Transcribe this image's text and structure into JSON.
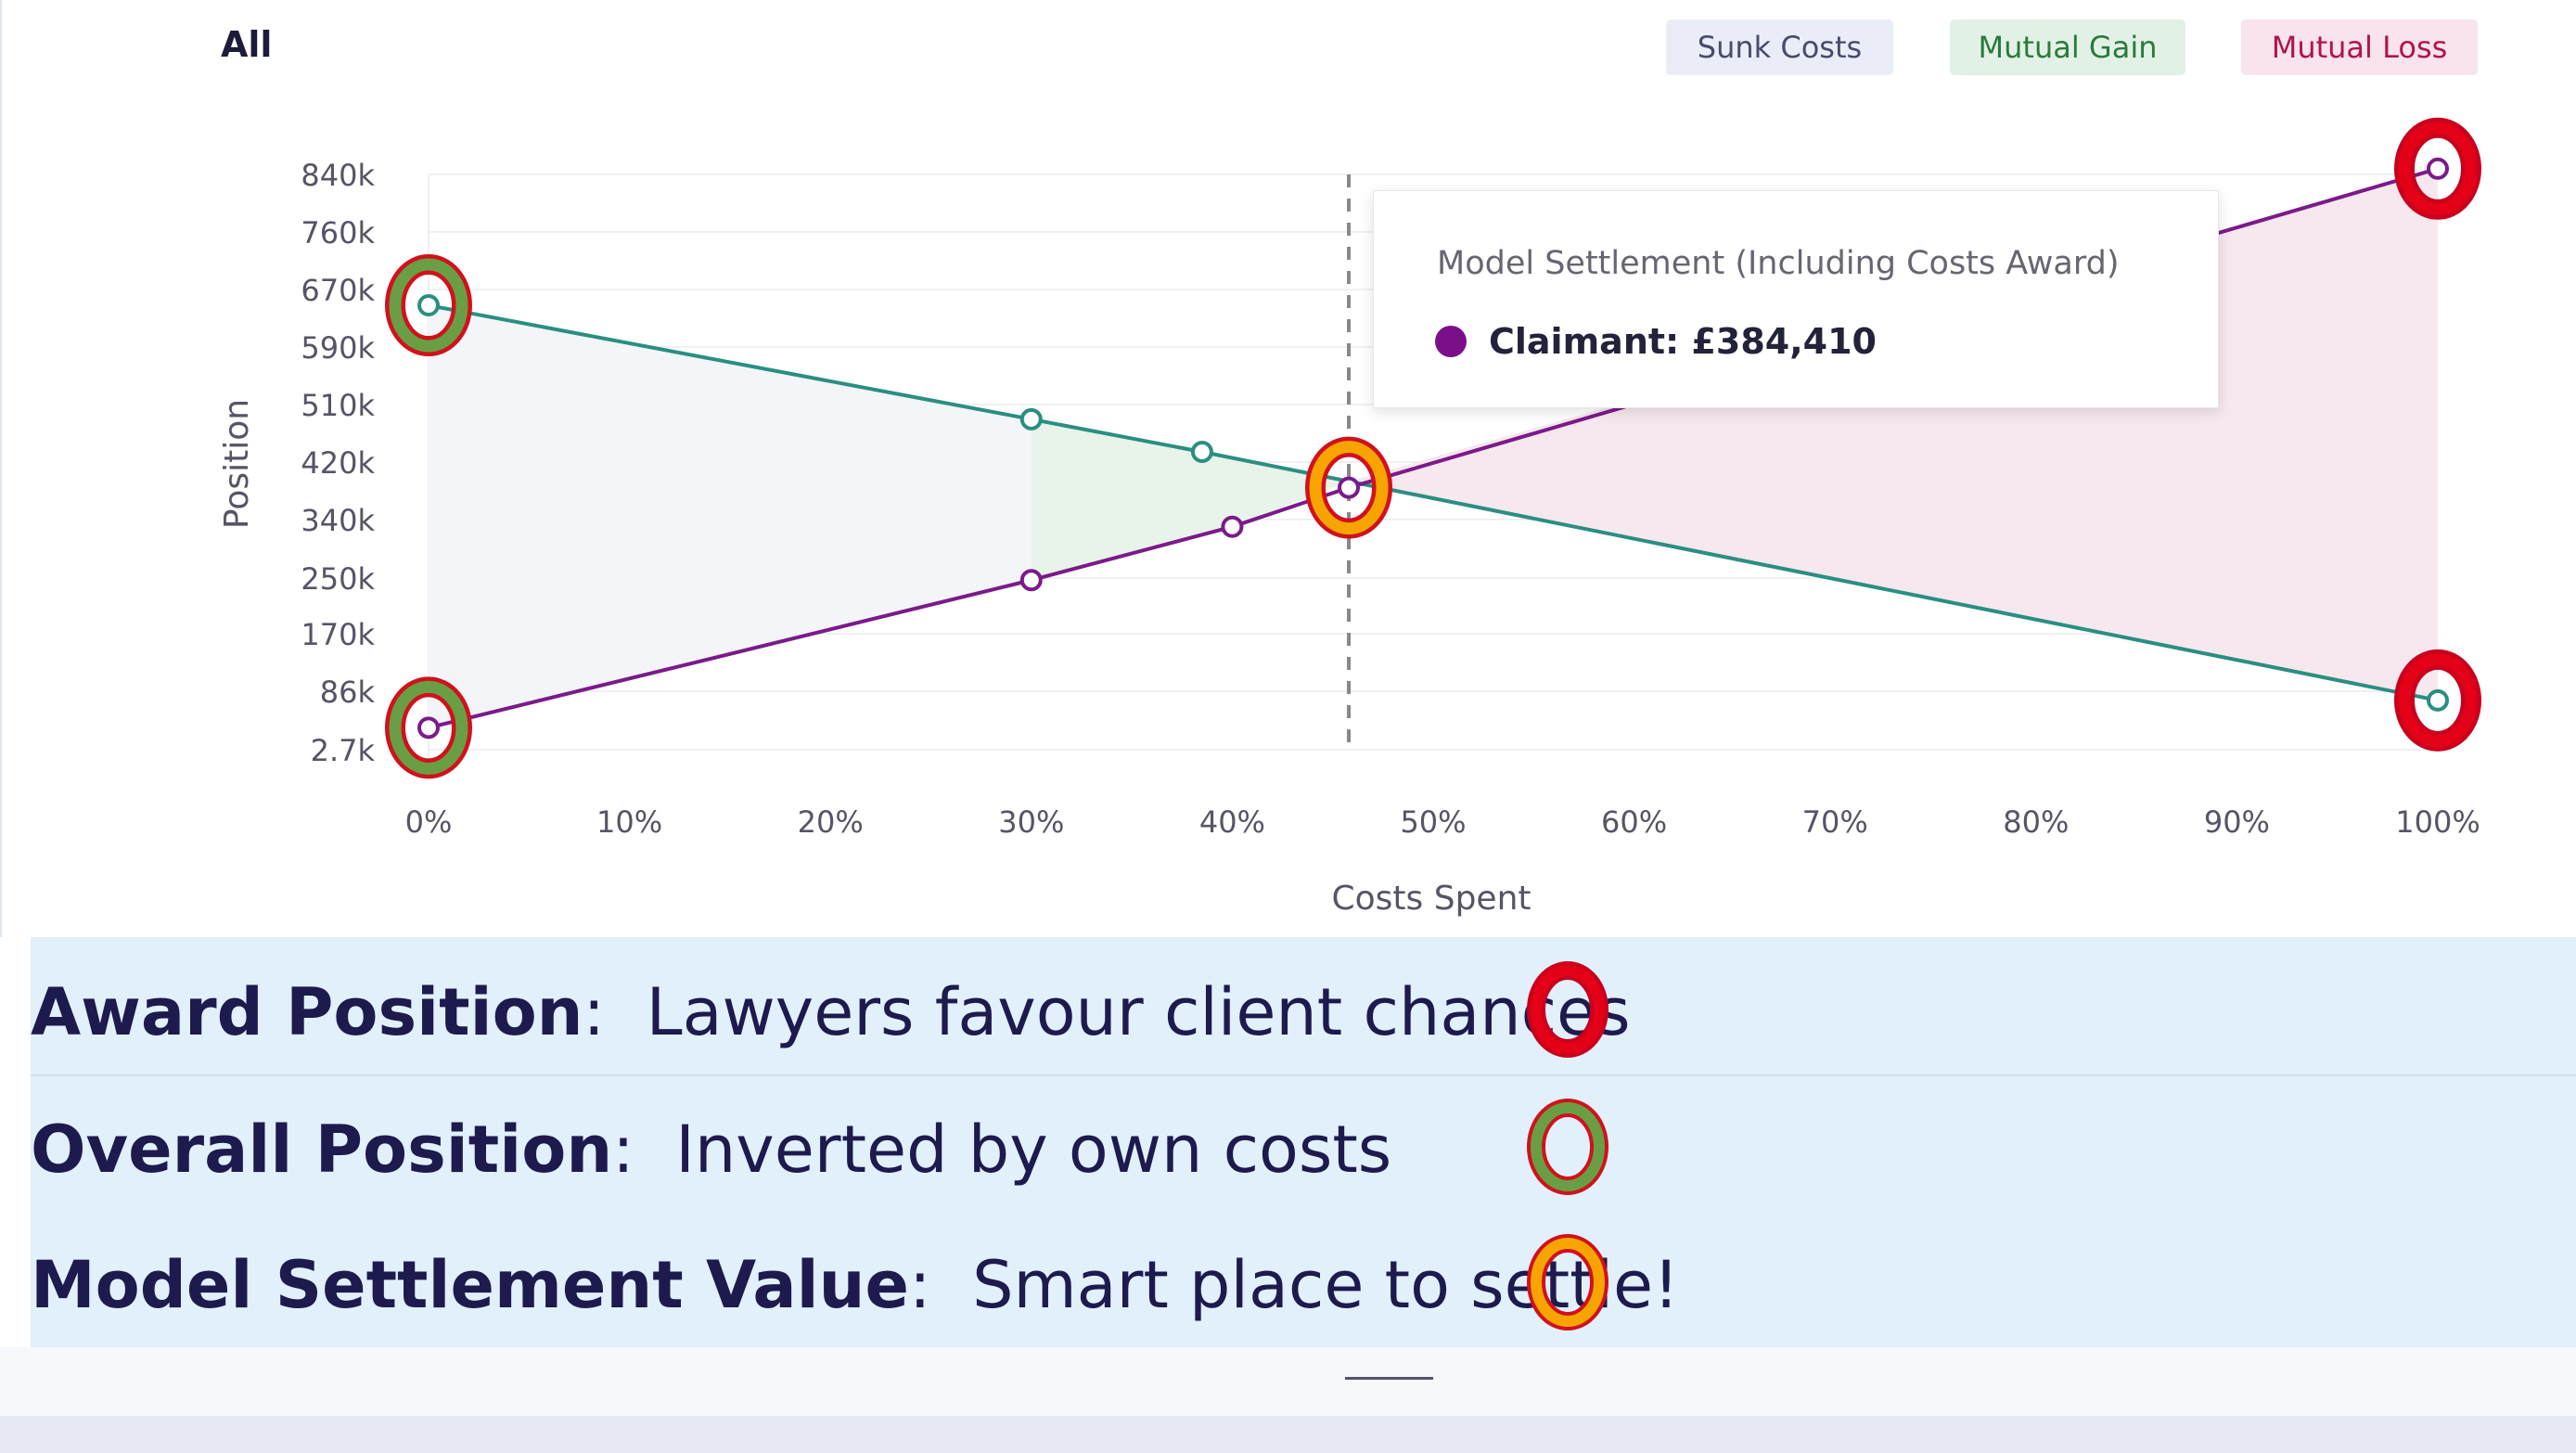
{
  "chart_data": {
    "type": "line",
    "title": "All",
    "xlabel": "Costs Spent",
    "ylabel": "Position",
    "x_ticks": [
      "0%",
      "10%",
      "20%",
      "30%",
      "40%",
      "50%",
      "60%",
      "70%",
      "80%",
      "90%",
      "100%"
    ],
    "y_ticks": [
      "2.7k",
      "86k",
      "170k",
      "250k",
      "340k",
      "420k",
      "510k",
      "590k",
      "670k",
      "760k",
      "840k"
    ],
    "y_tick_values": [
      2700,
      86000,
      170000,
      250000,
      340000,
      420000,
      510000,
      590000,
      670000,
      760000,
      840000
    ],
    "xlim": [
      0,
      100
    ],
    "ylim": [
      2700,
      840000
    ],
    "grid": true,
    "legend": [
      {
        "name": "Sunk Costs",
        "bg": "#eaedf7",
        "color": "#4a4a6a"
      },
      {
        "name": "Mutual Gain",
        "bg": "#e2f1e6",
        "color": "#2a7a3c"
      },
      {
        "name": "Mutual Loss",
        "bg": "#f9e3ec",
        "color": "#b0144a"
      }
    ],
    "series": [
      {
        "color": "#2a8f80",
        "points": [
          [
            0,
            648000
          ],
          [
            30,
            487000
          ],
          [
            38.5,
            436000
          ],
          [
            100,
            73000
          ]
        ]
      },
      {
        "color": "#7b1a8a",
        "points": [
          [
            0,
            34000
          ],
          [
            30,
            247000
          ],
          [
            40,
            329000
          ],
          [
            45.8,
            384410
          ],
          [
            100,
            848000
          ]
        ]
      }
    ],
    "crosshair_x": 45.8,
    "tooltip": {
      "title": "Model Settlement (Including Costs Award)",
      "series_label": "Claimant:",
      "value": "£384,410"
    },
    "annotations": [
      {
        "x": 0,
        "y": 648000,
        "ring": "green"
      },
      {
        "x": 0,
        "y": 34000,
        "ring": "green"
      },
      {
        "x": 45.8,
        "y": 384410,
        "ring": "orange"
      },
      {
        "x": 100,
        "y": 848000,
        "ring": "red"
      },
      {
        "x": 100,
        "y": 73000,
        "ring": "red"
      }
    ]
  },
  "ring_colors": {
    "red": {
      "border": "#c8001e",
      "fill": "#e40016"
    },
    "green": {
      "border": "#d1111e",
      "fill": "#6a9e44"
    },
    "orange": {
      "border": "#d1111e",
      "fill": "#f7a400"
    }
  },
  "notes": [
    {
      "label": "Award Position",
      "sep": ":",
      "text": "Lawyers favour client chances",
      "ring": "red"
    },
    {
      "label": "Overall Position",
      "sep": ":",
      "text": "Inverted by own costs",
      "ring": "green"
    },
    {
      "label": "Model Settlement Value",
      "sep": ":",
      "text": "Smart place to settle!",
      "ring": "orange"
    }
  ]
}
